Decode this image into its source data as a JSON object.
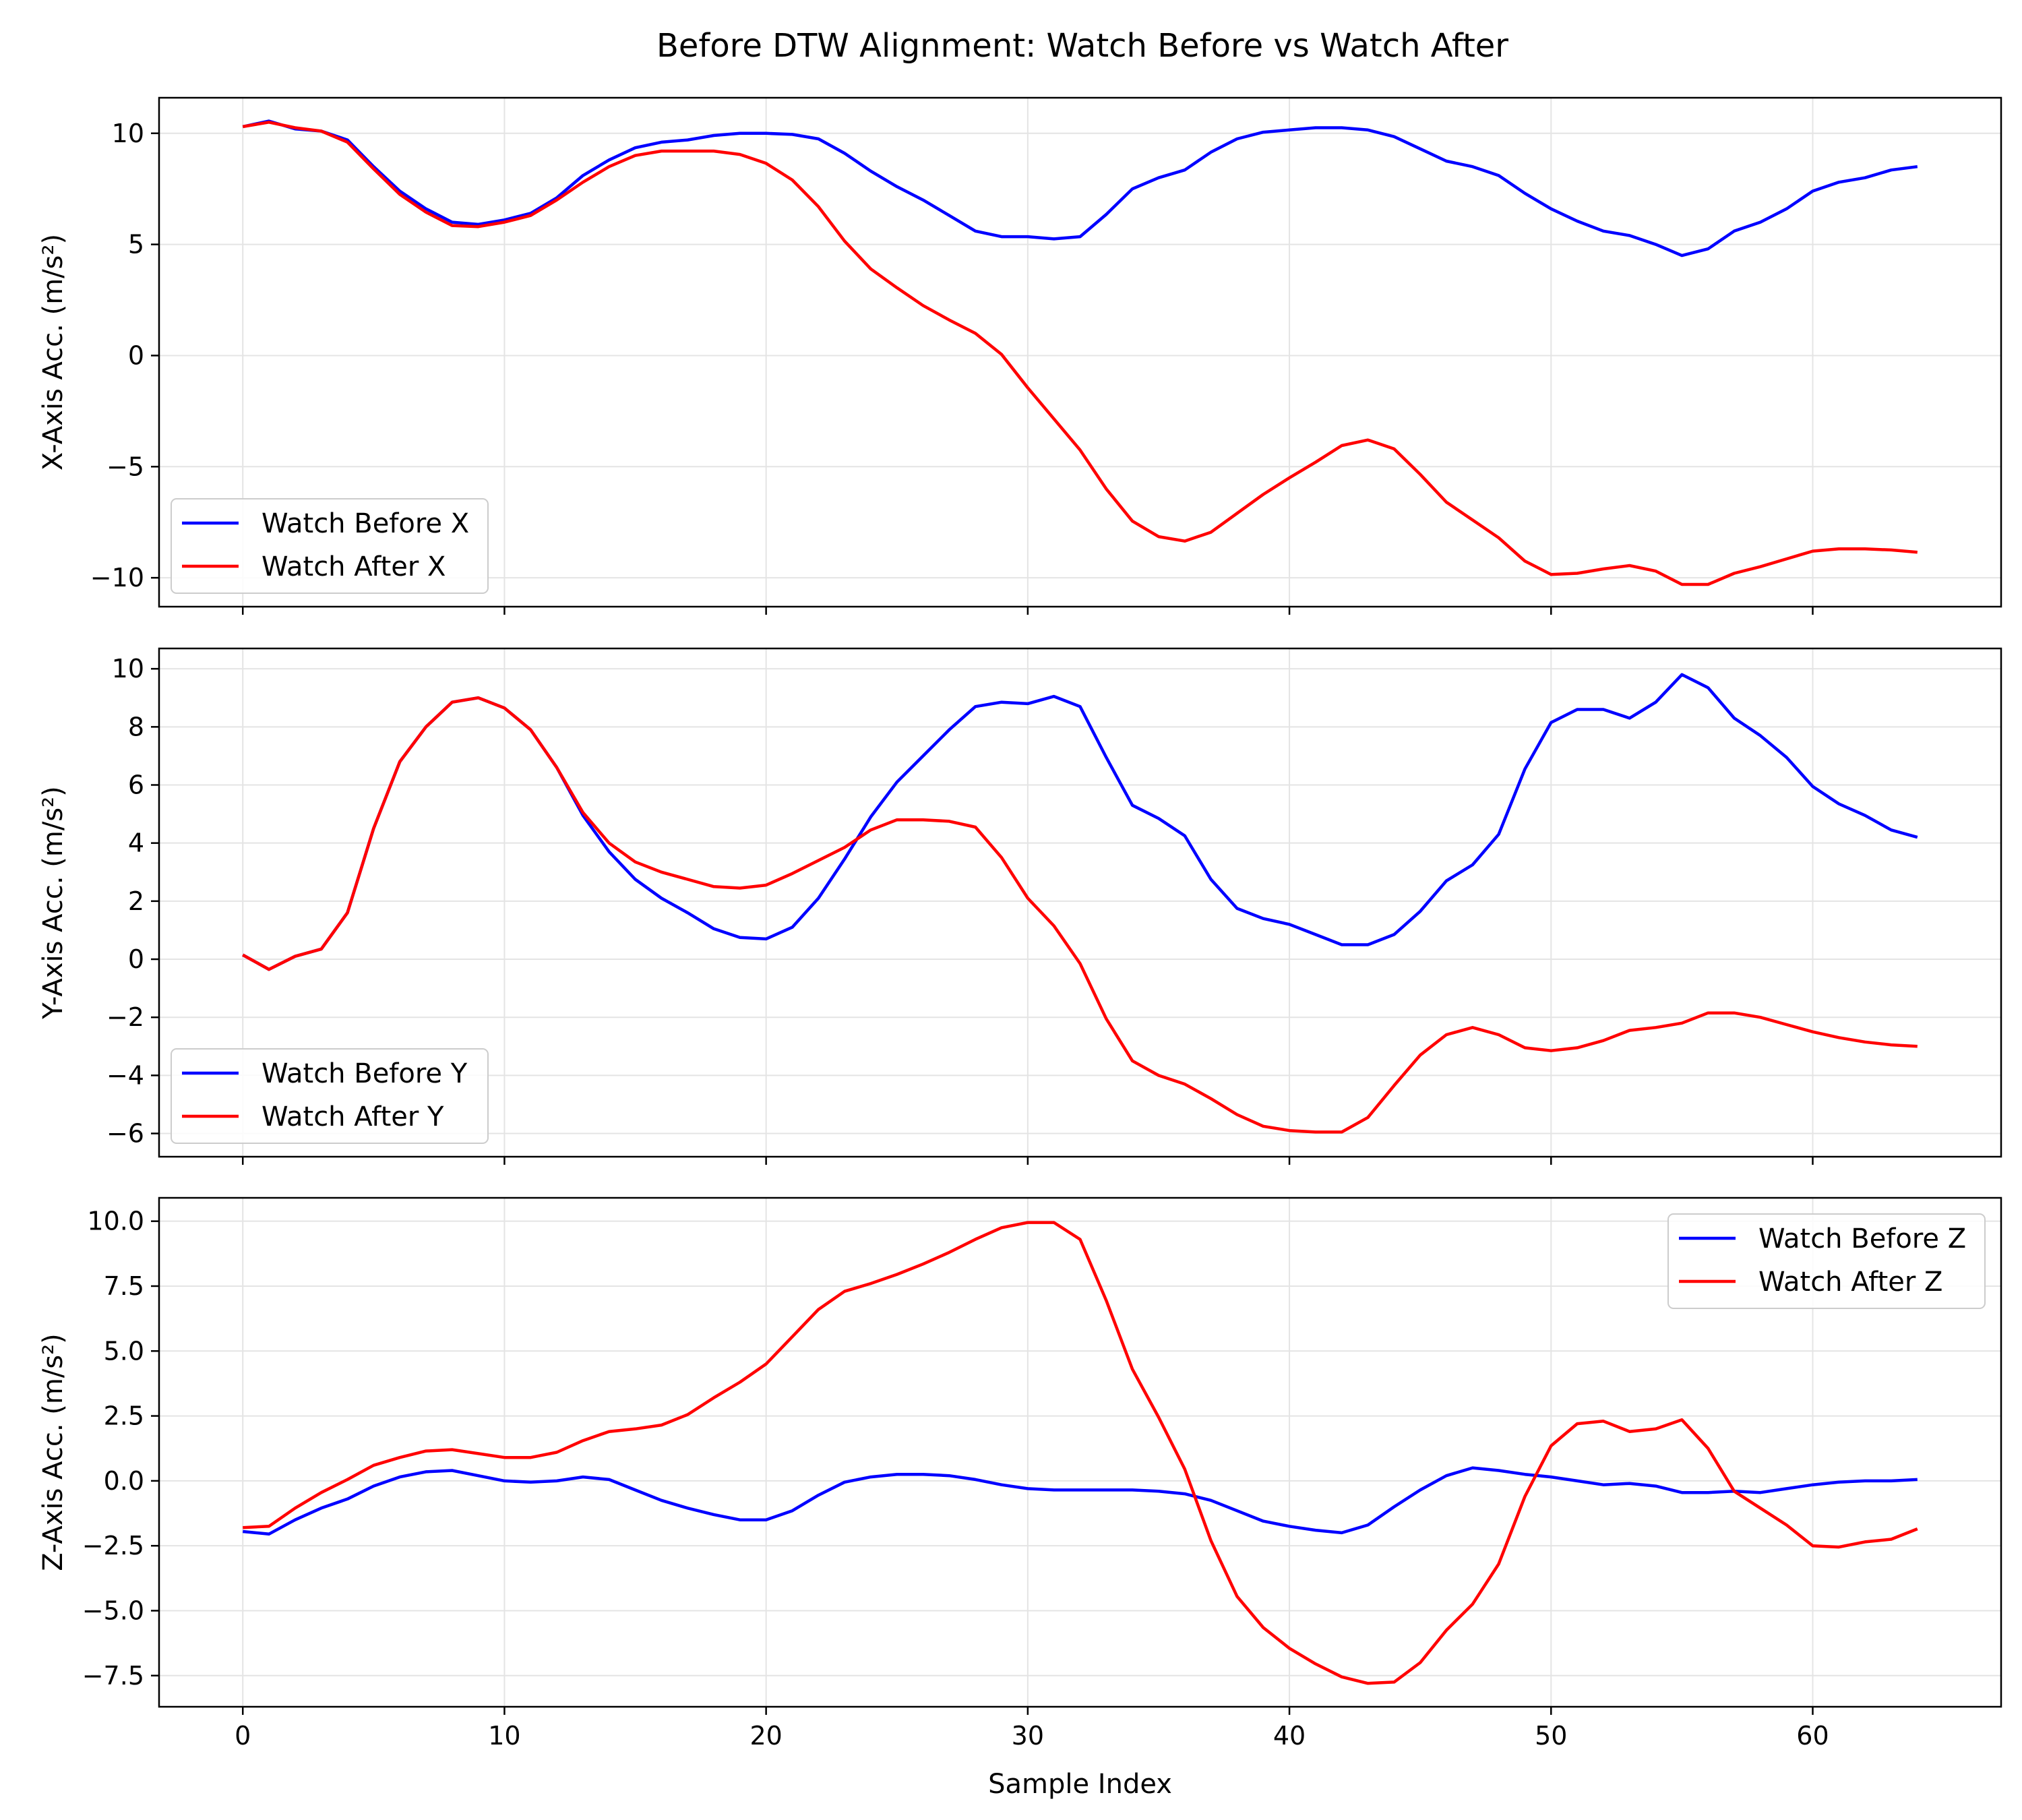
{
  "title": "Before DTW Alignment: Watch Before vs Watch After",
  "xlabel": "Sample Index",
  "colors": {
    "before": "#0000ff",
    "after": "#ff0000",
    "grid": "#e4e4e4",
    "axes": "#000000"
  },
  "chart_data": [
    {
      "type": "line",
      "ylabel": "X-Axis Acc. (m/s²)",
      "xlim": [
        -3.2,
        67.2
      ],
      "ylim": [
        -11.3,
        11.6
      ],
      "yticks": [
        10,
        5,
        0,
        -5,
        -10
      ],
      "ytick_labels": [
        "10",
        "5",
        "0",
        "−5",
        "−10"
      ],
      "legend_position": "lower-left",
      "grid": true,
      "series": [
        {
          "name": "Watch Before X",
          "color": "#0000ff",
          "values": [
            10.3,
            10.55,
            10.2,
            10.1,
            9.7,
            8.5,
            7.4,
            6.6,
            6.0,
            5.9,
            6.1,
            6.4,
            7.1,
            8.1,
            8.8,
            9.35,
            9.6,
            9.7,
            9.9,
            10.0,
            10.0,
            9.95,
            9.75,
            9.1,
            8.3,
            7.6,
            7.0,
            6.3,
            5.6,
            5.35,
            5.35,
            5.25,
            5.35,
            6.35,
            7.5,
            8.0,
            8.35,
            9.15,
            9.75,
            10.05,
            10.15,
            10.25,
            10.25,
            10.15,
            9.85,
            9.3,
            8.75,
            8.5,
            8.1,
            7.3,
            6.6,
            6.05,
            5.6,
            5.4,
            5.0,
            4.5,
            4.8,
            5.6,
            6.0,
            6.6,
            7.4,
            7.8,
            8.0,
            8.35,
            8.5
          ]
        },
        {
          "name": "Watch After X",
          "color": "#ff0000",
          "values": [
            10.3,
            10.5,
            10.25,
            10.1,
            9.6,
            8.4,
            7.25,
            6.45,
            5.85,
            5.8,
            6.0,
            6.3,
            7.0,
            7.8,
            8.5,
            9.0,
            9.2,
            9.2,
            9.2,
            9.05,
            8.65,
            7.9,
            6.7,
            5.15,
            3.9,
            3.05,
            2.25,
            1.6,
            1.0,
            0.05,
            -1.45,
            -2.85,
            -4.25,
            -6.0,
            -7.45,
            -8.15,
            -8.35,
            -7.95,
            -7.1,
            -6.25,
            -5.5,
            -4.8,
            -4.05,
            -3.8,
            -4.2,
            -5.35,
            -6.6,
            -7.4,
            -8.2,
            -9.25,
            -9.85,
            -9.8,
            -9.6,
            -9.45,
            -9.7,
            -10.3,
            -10.3,
            -9.8,
            -9.5,
            -9.15,
            -8.8,
            -8.7,
            -8.7,
            -8.75,
            -8.85
          ]
        }
      ]
    },
    {
      "type": "line",
      "ylabel": "Y-Axis Acc. (m/s²)",
      "xlim": [
        -3.2,
        67.2
      ],
      "ylim": [
        -6.8,
        10.7
      ],
      "yticks": [
        10,
        8,
        6,
        4,
        2,
        0,
        -2,
        -4,
        -6
      ],
      "ytick_labels": [
        "10",
        "8",
        "6",
        "4",
        "2",
        "0",
        "−2",
        "−4",
        "−6"
      ],
      "legend_position": "lower-left",
      "grid": true,
      "series": [
        {
          "name": "Watch Before Y",
          "color": "#0000ff",
          "values": [
            0.15,
            -0.35,
            0.1,
            0.35,
            1.6,
            4.5,
            6.8,
            8.0,
            8.85,
            9.0,
            8.65,
            7.9,
            6.6,
            4.95,
            3.7,
            2.75,
            2.1,
            1.6,
            1.05,
            0.75,
            0.7,
            1.1,
            2.1,
            3.45,
            4.9,
            6.1,
            7.0,
            7.9,
            8.7,
            8.85,
            8.8,
            9.05,
            8.7,
            6.95,
            5.3,
            4.85,
            4.25,
            2.75,
            1.75,
            1.4,
            1.2,
            0.85,
            0.5,
            0.5,
            0.85,
            1.65,
            2.7,
            3.25,
            4.3,
            6.55,
            8.15,
            8.6,
            8.6,
            8.3,
            8.85,
            9.8,
            9.35,
            8.3,
            7.7,
            6.95,
            5.95,
            5.35,
            4.95,
            4.45,
            4.2
          ]
        },
        {
          "name": "Watch After Y",
          "color": "#ff0000",
          "values": [
            0.15,
            -0.35,
            0.1,
            0.35,
            1.6,
            4.5,
            6.8,
            8.0,
            8.85,
            9.0,
            8.65,
            7.9,
            6.6,
            5.05,
            4.0,
            3.35,
            3.0,
            2.75,
            2.5,
            2.45,
            2.55,
            2.95,
            3.4,
            3.85,
            4.45,
            4.8,
            4.8,
            4.75,
            4.55,
            3.5,
            2.1,
            1.15,
            -0.15,
            -2.05,
            -3.5,
            -4.0,
            -4.3,
            -4.8,
            -5.35,
            -5.75,
            -5.9,
            -5.95,
            -5.95,
            -5.45,
            -4.35,
            -3.3,
            -2.6,
            -2.35,
            -2.6,
            -3.05,
            -3.15,
            -3.05,
            -2.8,
            -2.45,
            -2.35,
            -2.2,
            -1.85,
            -1.85,
            -2.0,
            -2.25,
            -2.5,
            -2.7,
            -2.85,
            -2.95,
            -3.0
          ]
        }
      ]
    },
    {
      "type": "line",
      "ylabel": "Z-Axis Acc. (m/s²)",
      "xlim": [
        -3.2,
        67.2
      ],
      "ylim": [
        -8.7,
        10.9
      ],
      "yticks": [
        10.0,
        7.5,
        5.0,
        2.5,
        0.0,
        -2.5,
        -5.0,
        -7.5
      ],
      "ytick_labels": [
        "10.0",
        "7.5",
        "5.0",
        "2.5",
        "0.0",
        "−2.5",
        "−5.0",
        "−7.5"
      ],
      "xticks": [
        0,
        10,
        20,
        30,
        40,
        50,
        60
      ],
      "xtick_labels": [
        "0",
        "10",
        "20",
        "30",
        "40",
        "50",
        "60"
      ],
      "legend_position": "upper-right",
      "grid": true,
      "series": [
        {
          "name": "Watch Before Z",
          "color": "#0000ff",
          "values": [
            -1.95,
            -2.05,
            -1.5,
            -1.05,
            -0.7,
            -0.2,
            0.15,
            0.35,
            0.4,
            0.2,
            0.0,
            -0.05,
            0.0,
            0.15,
            0.05,
            -0.35,
            -0.75,
            -1.05,
            -1.3,
            -1.5,
            -1.5,
            -1.15,
            -0.55,
            -0.05,
            0.15,
            0.25,
            0.25,
            0.2,
            0.05,
            -0.15,
            -0.3,
            -0.35,
            -0.35,
            -0.35,
            -0.35,
            -0.4,
            -0.5,
            -0.75,
            -1.15,
            -1.55,
            -1.75,
            -1.9,
            -2.0,
            -1.7,
            -1.0,
            -0.35,
            0.2,
            0.5,
            0.4,
            0.25,
            0.15,
            0.0,
            -0.15,
            -0.1,
            -0.2,
            -0.45,
            -0.45,
            -0.4,
            -0.45,
            -0.3,
            -0.15,
            -0.05,
            0.0,
            0.0,
            0.05
          ]
        },
        {
          "name": "Watch After Z",
          "color": "#ff0000",
          "values": [
            -1.8,
            -1.75,
            -1.05,
            -0.45,
            0.05,
            0.6,
            0.9,
            1.15,
            1.2,
            1.05,
            0.9,
            0.9,
            1.1,
            1.55,
            1.9,
            2.0,
            2.15,
            2.55,
            3.2,
            3.8,
            4.5,
            5.55,
            6.6,
            7.3,
            7.6,
            7.95,
            8.35,
            8.8,
            9.3,
            9.75,
            9.95,
            9.95,
            9.3,
            6.95,
            4.3,
            2.45,
            0.45,
            -2.3,
            -4.45,
            -5.65,
            -6.45,
            -7.05,
            -7.55,
            -7.8,
            -7.75,
            -7.0,
            -5.75,
            -4.75,
            -3.2,
            -0.6,
            1.35,
            2.2,
            2.3,
            1.9,
            2.0,
            2.35,
            1.25,
            -0.4,
            -1.05,
            -1.7,
            -2.5,
            -2.55,
            -2.35,
            -2.25,
            -1.85
          ]
        }
      ]
    }
  ]
}
